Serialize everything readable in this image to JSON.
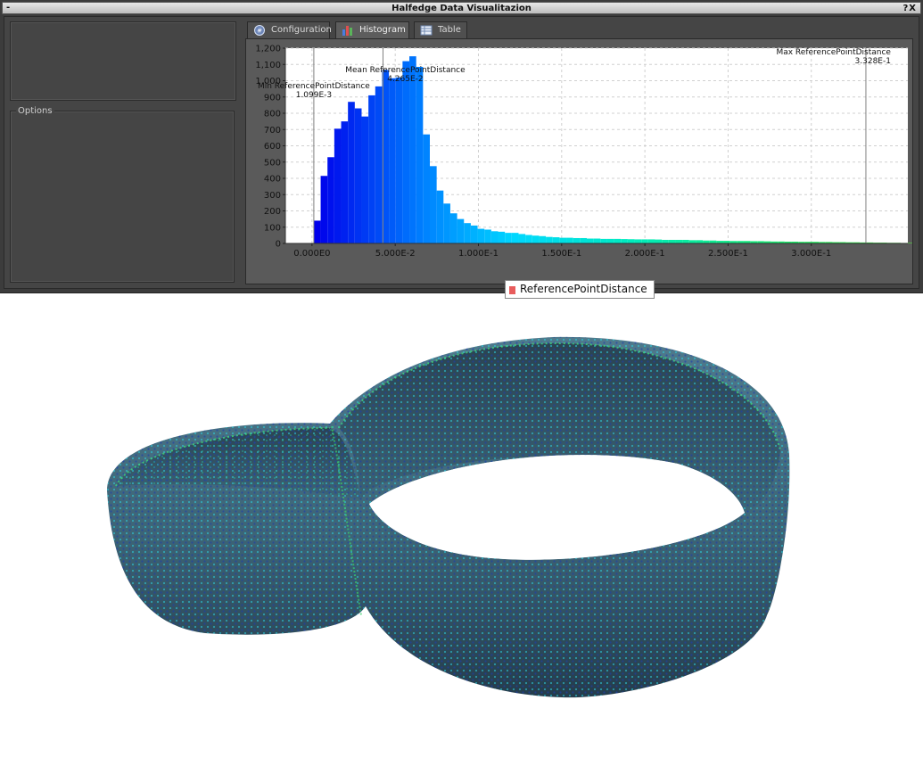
{
  "window": {
    "title": "Halfedge Data Visualitazion",
    "dash": "-",
    "controls": "?X"
  },
  "options_label": "Options",
  "tabs": [
    {
      "label": "Configuration",
      "icon": "configuration-icon",
      "active": false
    },
    {
      "label": "Histogram",
      "icon": "histogram-icon",
      "active": true
    },
    {
      "label": "Table",
      "icon": "table-icon",
      "active": false
    }
  ],
  "chart_data": {
    "type": "bar",
    "series_name": "ReferencePointDistance",
    "bin_width": 0.0041,
    "x_start": 0.0011,
    "values": [
      140,
      415,
      530,
      705,
      750,
      870,
      830,
      780,
      910,
      965,
      1065,
      1015,
      1020,
      1120,
      1150,
      1085,
      670,
      475,
      325,
      245,
      185,
      150,
      125,
      110,
      90,
      85,
      75,
      72,
      65,
      65,
      58,
      52,
      48,
      45,
      40,
      38,
      35,
      35,
      33,
      33,
      30,
      30,
      28,
      28,
      28,
      27,
      26,
      25,
      25,
      25,
      24,
      22,
      22,
      22,
      22,
      20,
      20,
      18,
      18,
      16,
      16,
      15,
      15,
      15,
      14,
      14,
      13,
      12,
      12,
      11,
      11,
      10,
      10,
      10,
      9,
      9,
      8,
      8,
      7,
      7,
      6,
      6,
      5,
      5,
      4,
      4,
      3,
      3,
      3,
      2,
      2,
      2,
      2,
      2,
      1,
      1,
      1,
      1,
      1,
      1,
      1,
      1,
      1,
      1,
      1,
      1,
      1,
      1,
      1,
      1,
      1,
      1,
      1,
      1,
      1,
      1,
      1,
      1,
      1,
      1,
      1,
      1,
      1,
      1,
      1,
      1,
      1,
      1,
      1,
      1,
      1,
      1
    ],
    "x_ticks": [
      {
        "value": 0.0,
        "label": "0.000E0"
      },
      {
        "value": 0.05,
        "label": "5.000E-2"
      },
      {
        "value": 0.1,
        "label": "1.000E-1"
      },
      {
        "value": 0.15,
        "label": "1.500E-1"
      },
      {
        "value": 0.2,
        "label": "2.000E-1"
      },
      {
        "value": 0.25,
        "label": "2.500E-1"
      },
      {
        "value": 0.3,
        "label": "3.000E-1"
      }
    ],
    "y_ticks": [
      0,
      100,
      200,
      300,
      400,
      500,
      600,
      700,
      800,
      900,
      1000,
      1100,
      1200
    ],
    "y_tick_labels": [
      "0",
      "100",
      "200",
      "300",
      "400",
      "500",
      "600",
      "700",
      "800",
      "900",
      "1,000",
      "1,100",
      "1,200"
    ],
    "xlim": [
      -0.016,
      0.358
    ],
    "ylim": [
      0,
      1200
    ],
    "grid": true,
    "markers": [
      {
        "value": 0.001099,
        "label": "Min ReferencePointDistance",
        "value_label": "1.099E-3"
      },
      {
        "value": 0.04265,
        "label": "Mean ReferencePointDistance",
        "value_label": "4.265E-2"
      },
      {
        "value": 0.3328,
        "label": "Max ReferencePointDistance",
        "value_label": "3.328E-1"
      }
    ],
    "legend": "bottom-center"
  },
  "legend": {
    "label": "ReferencePointDistance",
    "color": "#e85c5c"
  }
}
